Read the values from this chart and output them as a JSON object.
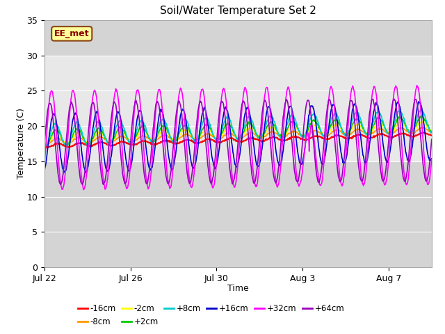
{
  "title": "Soil/Water Temperature Set 2",
  "xlabel": "Time",
  "ylabel": "Temperature (C)",
  "ylim": [
    0,
    35
  ],
  "yticks": [
    0,
    5,
    10,
    15,
    20,
    25,
    30,
    35
  ],
  "background_color": "#ffffff",
  "plot_bg_upper": "#d8d8d8",
  "plot_bg_mid": "#e8e8e8",
  "plot_bg_lower": "#d8d8d8",
  "num_days": 18,
  "xtick_labels": [
    "Jul 22",
    "Jul 26",
    "Jul 30",
    "Aug 3",
    "Aug 7"
  ],
  "xtick_positions": [
    0,
    4,
    8,
    12,
    16
  ],
  "annotation_text": "EE_met",
  "series": [
    {
      "label": "-16cm",
      "color": "#ff0000",
      "base": 17.2,
      "amplitude": 0.25,
      "phase": 0.0,
      "trend": 0.09,
      "lw": 1.5
    },
    {
      "label": "-8cm",
      "color": "#ff9900",
      "base": 17.8,
      "amplitude": 0.4,
      "phase": 0.05,
      "trend": 0.09,
      "lw": 1.2
    },
    {
      "label": "-2cm",
      "color": "#ffff00",
      "base": 18.1,
      "amplitude": 0.7,
      "phase": 0.08,
      "trend": 0.1,
      "lw": 1.2
    },
    {
      "label": "+2cm",
      "color": "#00cc00",
      "base": 18.3,
      "amplitude": 1.1,
      "phase": 0.1,
      "trend": 0.11,
      "lw": 1.2
    },
    {
      "label": "+8cm",
      "color": "#00cccc",
      "base": 18.7,
      "amplitude": 1.6,
      "phase": 0.12,
      "trend": 0.11,
      "lw": 1.2
    },
    {
      "label": "+16cm",
      "color": "#0000cc",
      "base": 17.5,
      "amplitude": 4.2,
      "phase": 0.2,
      "trend": 0.1,
      "lw": 1.2
    },
    {
      "label": "+32cm",
      "color": "#ff00ff",
      "base": 18.0,
      "amplitude": 7.0,
      "phase": 0.3,
      "trend": 0.04,
      "lw": 1.2
    },
    {
      "label": "+64cm",
      "color": "#9900bb",
      "base": 17.5,
      "amplitude": 5.8,
      "phase": 0.38,
      "trend": 0.03,
      "lw": 1.2
    }
  ]
}
